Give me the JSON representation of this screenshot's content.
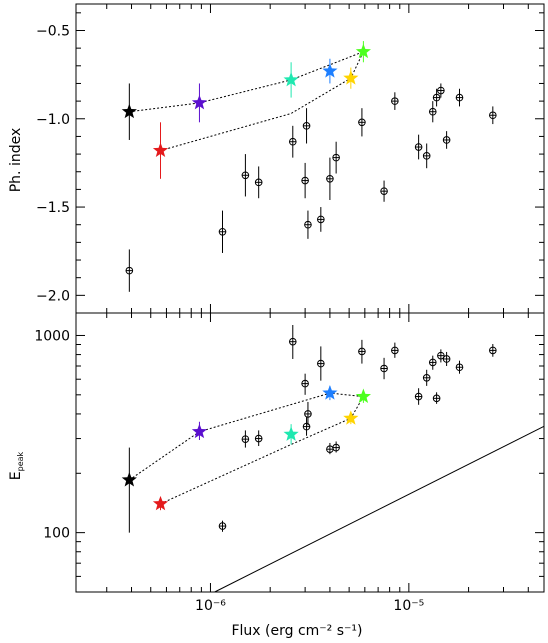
{
  "chart_data": [
    {
      "type": "scatter",
      "panel": "top",
      "ylabel": "Ph. index",
      "xscale": "log",
      "xlim": [
        2.1e-07,
        4.8e-05
      ],
      "ylim": [
        -2.1,
        -0.35
      ],
      "y_tick_labels": [
        "−2.0",
        "−1.5",
        "−1.0",
        "−0.5"
      ],
      "y_ticks": [
        -2.0,
        -1.5,
        -1.0,
        -0.5
      ],
      "points": [
        {
          "x": 3.9e-07,
          "y": -1.86,
          "yerr": 0.12
        },
        {
          "x": 1.15e-06,
          "y": -1.64,
          "yerr": 0.12
        },
        {
          "x": 1.5e-06,
          "y": -1.32,
          "yerr": 0.12
        },
        {
          "x": 1.75e-06,
          "y": -1.36,
          "yerr": 0.09
        },
        {
          "x": 2.6e-06,
          "y": -1.13,
          "yerr": 0.09
        },
        {
          "x": 3e-06,
          "y": -1.35,
          "yerr": 0.1
        },
        {
          "x": 3.1e-06,
          "y": -1.6,
          "yerr": 0.08
        },
        {
          "x": 3.05e-06,
          "y": -1.04,
          "yerr": 0.1
        },
        {
          "x": 3.6e-06,
          "y": -1.57,
          "yerr": 0.07
        },
        {
          "x": 4e-06,
          "y": -1.34,
          "yerr": 0.12
        },
        {
          "x": 4.3e-06,
          "y": -1.22,
          "yerr": 0.09
        },
        {
          "x": 5.8e-06,
          "y": -1.02,
          "yerr": 0.08
        },
        {
          "x": 7.5e-06,
          "y": -1.41,
          "yerr": 0.06
        },
        {
          "x": 8.5e-06,
          "y": -0.9,
          "yerr": 0.05
        },
        {
          "x": 1.12e-05,
          "y": -1.16,
          "yerr": 0.07
        },
        {
          "x": 1.23e-05,
          "y": -1.21,
          "yerr": 0.07
        },
        {
          "x": 1.32e-05,
          "y": -0.96,
          "yerr": 0.06
        },
        {
          "x": 1.38e-05,
          "y": -0.88,
          "yerr": 0.05
        },
        {
          "x": 1.45e-05,
          "y": -0.84,
          "yerr": 0.04
        },
        {
          "x": 1.55e-05,
          "y": -1.12,
          "yerr": 0.05
        },
        {
          "x": 1.8e-05,
          "y": -0.88,
          "yerr": 0.05
        },
        {
          "x": 2.65e-05,
          "y": -0.98,
          "yerr": 0.05
        }
      ],
      "stars": [
        {
          "x": 3.9e-07,
          "y": -0.96,
          "yerr": 0.16,
          "color": "#000000"
        },
        {
          "x": 5.6e-07,
          "y": -1.18,
          "yerr": 0.16,
          "color": "#e41a1c"
        },
        {
          "x": 8.8e-07,
          "y": -0.91,
          "yerr": 0.11,
          "color": "#5b0fcf"
        },
        {
          "x": 2.55e-06,
          "y": -0.78,
          "yerr": 0.1,
          "color": "#1fe8b0"
        },
        {
          "x": 4e-06,
          "y": -0.73,
          "yerr": 0.07,
          "color": "#1e7fff"
        },
        {
          "x": 5.1e-06,
          "y": -0.77,
          "yerr": 0.06,
          "color": "#ffd400"
        },
        {
          "x": 5.9e-06,
          "y": -0.62,
          "yerr": 0.06,
          "color": "#4dff1f"
        }
      ],
      "dotted_paths": [
        [
          [
            3.9e-07,
            -0.96
          ],
          [
            8.8e-07,
            -0.91
          ],
          [
            2.55e-06,
            -0.78
          ],
          [
            5.9e-06,
            -0.62
          ]
        ],
        [
          [
            5.6e-07,
            -1.18
          ],
          [
            2.55e-06,
            -0.97
          ],
          [
            5.1e-06,
            -0.77
          ],
          [
            5.9e-06,
            -0.62
          ]
        ]
      ]
    },
    {
      "type": "scatter",
      "panel": "bottom",
      "ylabel_main": "E",
      "ylabel_sub": "peak",
      "xlabel": "Flux (erg cm⁻² s⁻¹)",
      "xscale": "log",
      "yscale": "log",
      "xlim": [
        2.1e-07,
        4.8e-05
      ],
      "ylim": [
        50,
        1300
      ],
      "y_tick_labels": [
        "100",
        "1000"
      ],
      "y_ticks": [
        100,
        1000
      ],
      "x_tick_labels": [
        "10⁻⁶",
        "10⁻⁵"
      ],
      "x_ticks": [
        1e-06,
        1e-05
      ],
      "points": [
        {
          "x": 1.15e-06,
          "y": 108,
          "ylo": 101,
          "yhi": 115
        },
        {
          "x": 1.5e-06,
          "y": 298,
          "ylo": 270,
          "yhi": 330
        },
        {
          "x": 1.75e-06,
          "y": 300,
          "ylo": 275,
          "yhi": 330
        },
        {
          "x": 2.6e-06,
          "y": 930,
          "ylo": 760,
          "yhi": 1130
        },
        {
          "x": 3e-06,
          "y": 570,
          "ylo": 500,
          "yhi": 640
        },
        {
          "x": 3.05e-06,
          "y": 345,
          "ylo": 310,
          "yhi": 385
        },
        {
          "x": 3.1e-06,
          "y": 400,
          "ylo": 350,
          "yhi": 460
        },
        {
          "x": 3.6e-06,
          "y": 720,
          "ylo": 590,
          "yhi": 880
        },
        {
          "x": 4e-06,
          "y": 265,
          "ylo": 250,
          "yhi": 285
        },
        {
          "x": 4.3e-06,
          "y": 270,
          "ylo": 255,
          "yhi": 290
        },
        {
          "x": 5.8e-06,
          "y": 830,
          "ylo": 720,
          "yhi": 950
        },
        {
          "x": 7.5e-06,
          "y": 680,
          "ylo": 600,
          "yhi": 770
        },
        {
          "x": 8.5e-06,
          "y": 840,
          "ylo": 770,
          "yhi": 920
        },
        {
          "x": 1.12e-05,
          "y": 490,
          "ylo": 445,
          "yhi": 540
        },
        {
          "x": 1.23e-05,
          "y": 610,
          "ylo": 555,
          "yhi": 670
        },
        {
          "x": 1.32e-05,
          "y": 730,
          "ylo": 670,
          "yhi": 790
        },
        {
          "x": 1.38e-05,
          "y": 480,
          "ylo": 450,
          "yhi": 515
        },
        {
          "x": 1.45e-05,
          "y": 790,
          "ylo": 730,
          "yhi": 850
        },
        {
          "x": 1.55e-05,
          "y": 760,
          "ylo": 700,
          "yhi": 825
        },
        {
          "x": 1.8e-05,
          "y": 690,
          "ylo": 640,
          "yhi": 745
        },
        {
          "x": 2.65e-05,
          "y": 840,
          "ylo": 780,
          "yhi": 905
        }
      ],
      "stars": [
        {
          "x": 3.9e-07,
          "y": 185,
          "ylo": 100,
          "yhi": 270,
          "color": "#000000"
        },
        {
          "x": 5.6e-07,
          "y": 140,
          "ylo": 130,
          "yhi": 150,
          "color": "#e41a1c"
        },
        {
          "x": 8.8e-07,
          "y": 325,
          "ylo": 295,
          "yhi": 365,
          "color": "#5b0fcf"
        },
        {
          "x": 2.55e-06,
          "y": 315,
          "ylo": 280,
          "yhi": 355,
          "color": "#1fe8b0"
        },
        {
          "x": 4e-06,
          "y": 510,
          "ylo": 470,
          "yhi": 555,
          "color": "#1e7fff"
        },
        {
          "x": 5.1e-06,
          "y": 380,
          "ylo": 355,
          "yhi": 405,
          "color": "#ffd400"
        },
        {
          "x": 5.9e-06,
          "y": 490,
          "ylo": 455,
          "yhi": 525,
          "color": "#4dff1f"
        }
      ],
      "dotted_paths": [
        [
          [
            3.9e-07,
            185
          ],
          [
            8.8e-07,
            325
          ],
          [
            4e-06,
            510
          ],
          [
            5.9e-06,
            490
          ]
        ],
        [
          [
            5.6e-07,
            140
          ],
          [
            2.55e-06,
            280
          ],
          [
            5.1e-06,
            380
          ],
          [
            5.9e-06,
            490
          ]
        ]
      ],
      "reference_line": [
        [
          1.05e-06,
          50
        ],
        [
          4.8e-05,
          346
        ]
      ]
    }
  ]
}
